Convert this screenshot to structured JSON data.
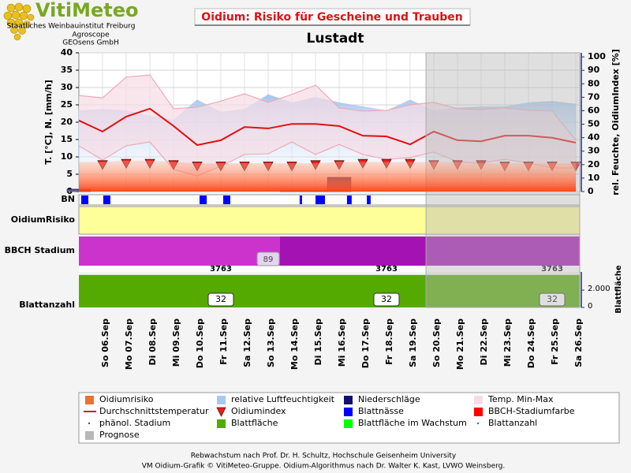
{
  "header": {
    "brand": "VitiMeteo",
    "lines": [
      "Staatliches Weinbauinstitut Freiburg",
      "Agroscope",
      "GEOsens GmbH"
    ],
    "box_title": "Oidium: Risiko für Gescheine und Trauben"
  },
  "chart_data": {
    "type": "line",
    "title": "Lustadt",
    "ylabel": "T. [°C], N. [mm/h]",
    "y2label": "rel. Feuchte, OidiumIndex [%]",
    "y3label": "Blattfläche",
    "categories": [
      null,
      "So 06.Sep",
      "Mo 07.Sep",
      "Di 08.Sep",
      "Mi 09.Sep",
      "Do 10.Sep",
      "Fr 11.Sep",
      "Sa 12.Sep",
      "So 13.Sep",
      "Mo 14.Sep",
      "Di 15.Sep",
      "Mi 16.Sep",
      "Do 17.Sep",
      "Fr 18.Sep",
      "Sa 19.Sep",
      "So 20.Sep",
      "Mo 21.Sep",
      "Di 22.Sep",
      "Mi 23.Sep",
      "Do 24.Sep",
      "Fr 25.Sep",
      "Sa 26.Sep"
    ],
    "ylim": [
      0,
      40
    ],
    "yticks": [
      0,
      5,
      10,
      15,
      20,
      25,
      30,
      35,
      40
    ],
    "y2lim": [
      0,
      103
    ],
    "y2ticks": [
      0,
      10,
      20,
      30,
      40,
      50,
      60,
      70,
      80,
      90,
      100
    ],
    "y3lim": [
      0,
      4100
    ],
    "y3ticks": [
      0,
      {
        "value": 2000,
        "label": "2.000"
      }
    ],
    "grid": true,
    "row_labels": [
      "BN",
      "OidiumRisiko",
      "BBCH Stadium",
      "Blattanzahl"
    ],
    "series": [
      {
        "name": "Oidiumrisiko",
        "kind": "area",
        "axis": "y2",
        "symbol": "square",
        "color": "#f07030",
        "row_color": "#ffff99",
        "values": [
          22,
          22,
          23,
          23,
          22,
          21,
          21,
          21,
          21,
          21,
          21,
          22,
          22,
          22,
          22,
          22,
          22,
          21,
          21,
          21,
          21,
          21
        ]
      },
      {
        "name": "Durchschnittstemperatur",
        "kind": "line",
        "symbol": "line",
        "color": "#e01010",
        "values": [
          20.5,
          17.3,
          21.6,
          23.9,
          18.9,
          13.4,
          14.8,
          18.6,
          18.2,
          19.5,
          19.5,
          18.9,
          16.1,
          15.9,
          13.6,
          17.3,
          14.8,
          14.5,
          16.1,
          16.1,
          15.5,
          14.1
        ]
      },
      {
        "name": "phänol. Stadium",
        "kind": "stage",
        "symbol": "dot",
        "color": "#555555",
        "values": [
          null,
          null,
          null,
          null,
          null,
          null,
          null,
          null,
          89,
          null,
          null,
          null,
          null,
          null,
          null,
          null,
          null,
          null,
          null,
          null,
          null,
          null
        ]
      },
      {
        "name": "Prognose",
        "kind": "forecast",
        "symbol": "square",
        "color": "#b8b8b8",
        "start": 14.67
      },
      {
        "name": "relative Luftfeuchtigkeit",
        "kind": "area",
        "axis": "y2",
        "symbol": "square",
        "color": "#a8c8f0",
        "values": [
          60,
          61,
          60,
          56,
          53,
          68,
          59,
          61,
          72,
          66,
          70,
          66,
          63,
          60,
          68,
          60,
          62,
          63,
          63,
          66,
          67,
          65
        ]
      },
      {
        "name": "Oidiumindex",
        "kind": "triangles",
        "axis": "y2",
        "symbol": "triangle",
        "color": "#e02020",
        "values": [
          null,
          20,
          21,
          21,
          20,
          19,
          19,
          19,
          19,
          19,
          20,
          20,
          21,
          21,
          21,
          20,
          20,
          20,
          19,
          19,
          19,
          19
        ]
      },
      {
        "name": "Blattfläche",
        "kind": "leafarea",
        "axis": "y3",
        "symbol": "square",
        "color": "#55aa00",
        "values": [
          3763,
          3763,
          3763,
          3763,
          3763,
          3763,
          3763,
          3763,
          3763,
          3763,
          3763,
          3763,
          3763,
          3763,
          3763,
          3763,
          3763,
          3763,
          3763,
          3763,
          3763,
          3763
        ]
      },
      {
        "name": "Niederschläge",
        "kind": "bars",
        "symbol": "square",
        "color": "#101070",
        "values": [
          0.7,
          0,
          0,
          0,
          0,
          0,
          0,
          0,
          0,
          0.3,
          0.3,
          4.1,
          0,
          0,
          0,
          0,
          0,
          0,
          0,
          0,
          0,
          0
        ]
      },
      {
        "name": "Blattnässe",
        "kind": "intervals",
        "symbol": "square",
        "color": "#0000ff",
        "intervals": [
          [
            0.1,
            0.4
          ],
          [
            1.03,
            1.33
          ],
          [
            5.1,
            5.4
          ],
          [
            6.1,
            6.4
          ],
          [
            9.33,
            9.43
          ],
          [
            10,
            10.4
          ],
          [
            11.33,
            11.53
          ],
          [
            12.17,
            12.33
          ]
        ]
      },
      {
        "name": "Blattfläche im Wachstum",
        "kind": "none",
        "symbol": "square",
        "color": "#00ff00"
      },
      {
        "name": "Temp. Min-Max",
        "kind": "band",
        "symbol": "square",
        "color": "#f6dce6",
        "upper": [
          27.7,
          27,
          33,
          33.6,
          23.9,
          24.3,
          26.1,
          28.2,
          25.7,
          28,
          30.7,
          24.1,
          23.2,
          23.4,
          25,
          25.7,
          23.9,
          23.6,
          24.1,
          23.4,
          23.2,
          14.8
        ],
        "lower": [
          13.2,
          9.1,
          13.2,
          14.3,
          6.4,
          4.5,
          7.3,
          10.7,
          10.9,
          14.3,
          10.7,
          13.6,
          10.7,
          9.3,
          9.8,
          11.4,
          8.6,
          8.2,
          9.3,
          8.2,
          6.8,
          6.8
        ]
      },
      {
        "name": "BBCH-Stadiumfarbe",
        "kind": "segments",
        "symbol": "square",
        "color": "#ff0000",
        "segments": [
          {
            "start": 0,
            "end": 8.5,
            "color": "#cc33cc"
          },
          {
            "start": 8.5,
            "end": 21.17,
            "color": "#a412b4"
          }
        ]
      },
      {
        "name": "Blattanzahl",
        "kind": "count",
        "symbol": "dot",
        "color": "#009966",
        "values": [
          32,
          32,
          32,
          32,
          32,
          32,
          32,
          32,
          32,
          32,
          32,
          32,
          32,
          32,
          32,
          32,
          32,
          32,
          32,
          32,
          32,
          32
        ]
      }
    ]
  },
  "footer": [
    "Rebwachstum nach Prof. Dr. H. Schultz, Hochschule Geisenheim University",
    "VM Oidium-Grafik © VitiMeteo-Gruppe. Oidium-Algorithmus nach Dr. Walter K. Kast, LVWO Weinsberg."
  ]
}
